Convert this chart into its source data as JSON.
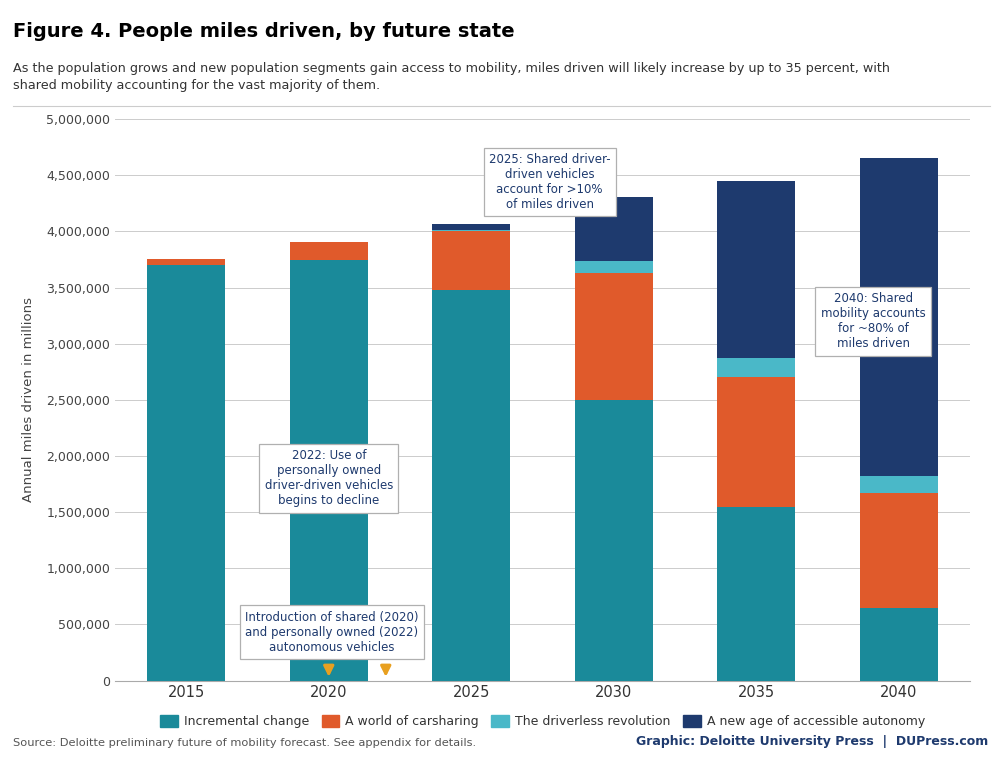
{
  "title": "Figure 4. People miles driven, by future state",
  "subtitle": "As the population grows and new population segments gain access to mobility, miles driven will likely increase by up to 35 percent, with\nshared mobility accounting for the vast majority of them.",
  "years": [
    "2015",
    "2020",
    "2025",
    "2030",
    "2035",
    "2040"
  ],
  "incremental": [
    3700000,
    3750000,
    3480000,
    2500000,
    1550000,
    650000
  ],
  "carsharing": [
    55000,
    155000,
    520000,
    1130000,
    1150000,
    1020000
  ],
  "driverless": [
    0,
    0,
    15000,
    110000,
    175000,
    155000
  ],
  "autonomy": [
    0,
    0,
    55000,
    570000,
    1575000,
    2830000
  ],
  "colors": {
    "incremental": "#1a8a9a",
    "carsharing": "#e05a2b",
    "driverless": "#4ab8c8",
    "autonomy": "#1e3a6e"
  },
  "legend_labels": [
    "Incremental change",
    "A world of carsharing",
    "The driverless revolution",
    "A new age of accessible autonomy"
  ],
  "ylabel": "Annual miles driven in millions",
  "ylim": [
    0,
    5000000
  ],
  "yticks": [
    0,
    500000,
    1000000,
    1500000,
    2000000,
    2500000,
    3000000,
    3500000,
    4000000,
    4500000,
    5000000
  ],
  "ytick_labels": [
    "0",
    "500,000",
    "1,000,000",
    "1,500,000",
    "2,000,000",
    "2,500,000",
    "3,000,000",
    "3,500,000",
    "4,000,000",
    "4,500,000",
    "5,000,000"
  ],
  "source_text": "Source: Deloitte preliminary future of mobility forecast. See appendix for details.",
  "credit_text": "Graphic: Deloitte University Press  |  DUPress.com",
  "background_color": "#ffffff",
  "grid_color": "#cccccc",
  "text_color": "#1e3a6e",
  "bar_width": 0.55,
  "ann1_text": "Introduction of shared (2020)\nand personally owned (2022)\nautonomous vehicles",
  "ann2_text": "2022: Use of\npersonally owned\ndriver-driven vehicles\nbegins to decline",
  "ann3_text": "2025: Shared driver-\ndriven vehicles\naccount for >10%\nof miles driven",
  "ann4_text": "2040: Shared\nmobility accounts\nfor ~80% of\nmiles driven"
}
